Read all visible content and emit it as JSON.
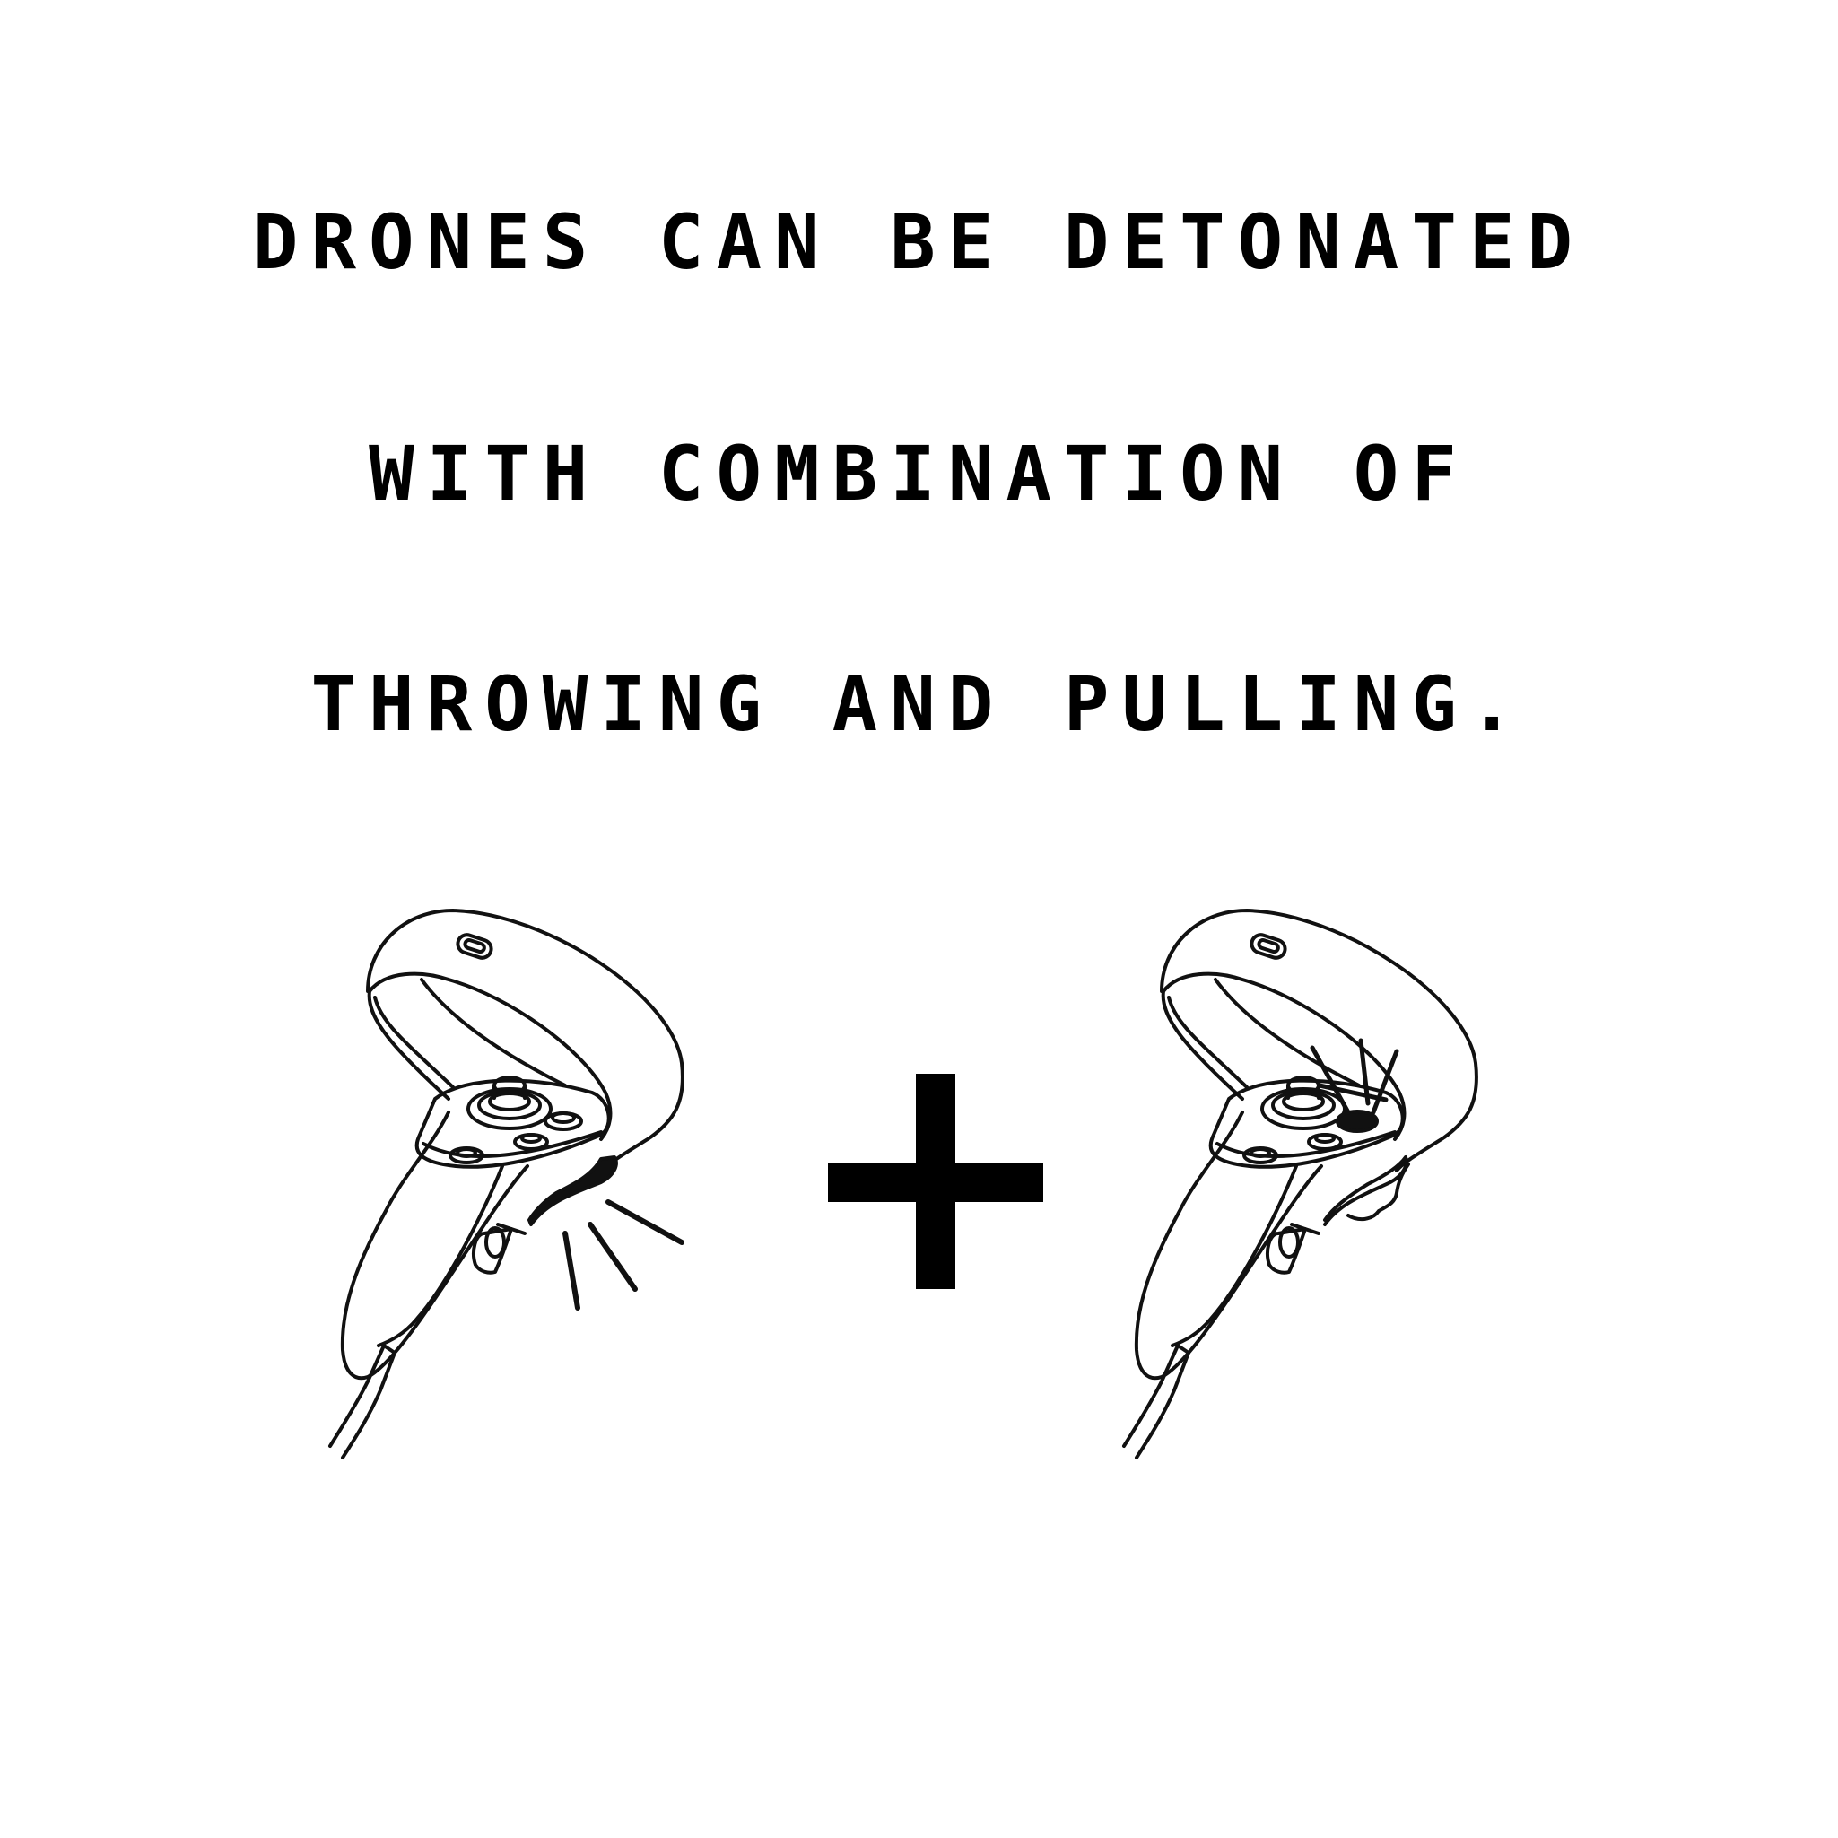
{
  "instruction": {
    "lines": [
      "DRONES CAN BE DETONATED",
      "WITH COMBINATION OF",
      "THROWING AND PULLING."
    ]
  },
  "icons": {
    "left": "vr-controller-trigger-pull-icon",
    "operator": "plus-icon",
    "right": "vr-controller-button-press-icon"
  },
  "colors": {
    "ink": "#000000",
    "background": "#ffffff"
  }
}
